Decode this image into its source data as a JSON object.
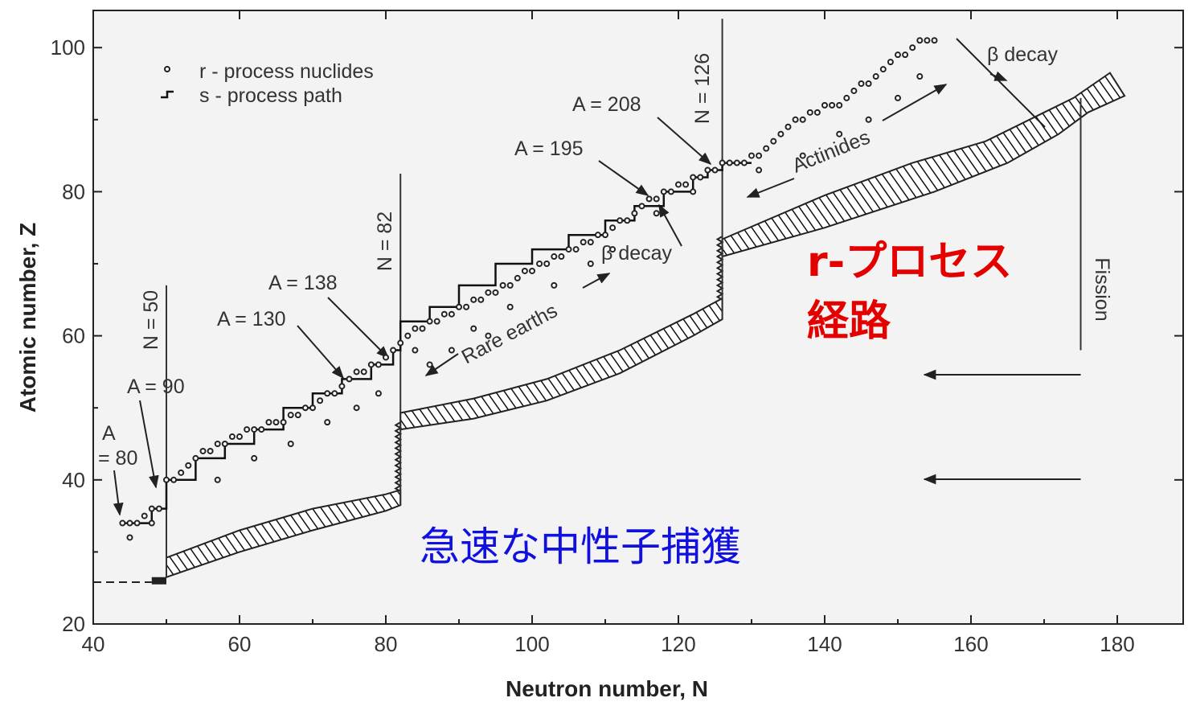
{
  "chart_data": {
    "type": "scatter",
    "xlabel": "Neutron number, N",
    "ylabel": "Atomic number, Z",
    "xlim": [
      40,
      190
    ],
    "ylim": [
      20,
      105
    ],
    "x_ticks": [
      40,
      60,
      80,
      100,
      120,
      140,
      160,
      180
    ],
    "y_ticks": [
      20,
      40,
      60,
      80,
      100
    ],
    "grid": false,
    "legend": {
      "position": "top-left",
      "entries": [
        {
          "name": "r - process nuclides",
          "marker": "open-circle"
        },
        {
          "name": "s - process path",
          "marker": "step-line"
        }
      ]
    },
    "series": [
      {
        "name": "r - process nuclides",
        "points": [
          [
            44,
            34
          ],
          [
            45,
            34
          ],
          [
            46,
            34
          ],
          [
            47,
            35
          ],
          [
            48,
            36
          ],
          [
            49,
            36
          ],
          [
            50,
            40
          ],
          [
            51,
            40
          ],
          [
            52,
            41
          ],
          [
            53,
            42
          ],
          [
            54,
            43
          ],
          [
            55,
            44
          ],
          [
            56,
            44
          ],
          [
            57,
            45
          ],
          [
            58,
            45
          ],
          [
            59,
            46
          ],
          [
            60,
            46
          ],
          [
            61,
            47
          ],
          [
            62,
            47
          ],
          [
            63,
            47
          ],
          [
            64,
            48
          ],
          [
            65,
            48
          ],
          [
            66,
            48
          ],
          [
            67,
            49
          ],
          [
            68,
            49
          ],
          [
            69,
            50
          ],
          [
            70,
            50
          ],
          [
            71,
            51
          ],
          [
            72,
            52
          ],
          [
            73,
            52
          ],
          [
            74,
            53
          ],
          [
            75,
            54
          ],
          [
            76,
            55
          ],
          [
            77,
            55
          ],
          [
            78,
            56
          ],
          [
            79,
            56
          ],
          [
            80,
            57
          ],
          [
            81,
            58
          ],
          [
            82,
            59
          ],
          [
            83,
            60
          ],
          [
            84,
            61
          ],
          [
            85,
            61
          ],
          [
            86,
            62
          ],
          [
            87,
            62
          ],
          [
            88,
            63
          ],
          [
            89,
            63
          ],
          [
            90,
            64
          ],
          [
            91,
            64
          ],
          [
            92,
            65
          ],
          [
            93,
            65
          ],
          [
            94,
            66
          ],
          [
            95,
            66
          ],
          [
            96,
            67
          ],
          [
            97,
            67
          ],
          [
            98,
            68
          ],
          [
            99,
            69
          ],
          [
            100,
            69
          ],
          [
            101,
            70
          ],
          [
            102,
            70
          ],
          [
            103,
            71
          ],
          [
            104,
            71
          ],
          [
            105,
            72
          ],
          [
            106,
            72
          ],
          [
            107,
            73
          ],
          [
            108,
            73
          ],
          [
            109,
            74
          ],
          [
            110,
            74
          ],
          [
            111,
            75
          ],
          [
            112,
            76
          ],
          [
            113,
            76
          ],
          [
            114,
            77
          ],
          [
            115,
            78
          ],
          [
            116,
            79
          ],
          [
            117,
            79
          ],
          [
            118,
            80
          ],
          [
            119,
            80
          ],
          [
            120,
            81
          ],
          [
            121,
            81
          ],
          [
            122,
            82
          ],
          [
            123,
            82
          ],
          [
            124,
            83
          ],
          [
            125,
            83
          ],
          [
            126,
            84
          ],
          [
            127,
            84
          ],
          [
            128,
            84
          ],
          [
            129,
            84
          ],
          [
            130,
            85
          ],
          [
            131,
            85
          ],
          [
            132,
            86
          ],
          [
            133,
            87
          ],
          [
            134,
            88
          ],
          [
            135,
            89
          ],
          [
            136,
            90
          ],
          [
            137,
            90
          ],
          [
            138,
            91
          ],
          [
            139,
            91
          ],
          [
            140,
            92
          ],
          [
            141,
            92
          ],
          [
            142,
            92
          ],
          [
            143,
            93
          ],
          [
            144,
            94
          ],
          [
            145,
            95
          ],
          [
            146,
            95
          ],
          [
            147,
            96
          ],
          [
            148,
            97
          ],
          [
            149,
            98
          ],
          [
            150,
            99
          ],
          [
            151,
            99
          ],
          [
            152,
            100
          ],
          [
            153,
            101
          ],
          [
            154,
            101
          ],
          [
            155,
            101
          ],
          [
            45,
            32
          ],
          [
            48,
            34
          ],
          [
            57,
            40
          ],
          [
            62,
            43
          ],
          [
            67,
            45
          ],
          [
            72,
            48
          ],
          [
            76,
            50
          ],
          [
            79,
            52
          ],
          [
            84,
            58
          ],
          [
            86,
            56
          ],
          [
            89,
            58
          ],
          [
            92,
            61
          ],
          [
            94,
            60
          ],
          [
            97,
            64
          ],
          [
            103,
            67
          ],
          [
            108,
            70
          ],
          [
            111,
            72
          ],
          [
            117,
            77
          ],
          [
            122,
            80
          ],
          [
            131,
            83
          ],
          [
            137,
            85
          ],
          [
            142,
            88
          ],
          [
            146,
            90
          ],
          [
            150,
            93
          ],
          [
            153,
            96
          ]
        ]
      },
      {
        "name": "s - process path",
        "points": [
          [
            44,
            34
          ],
          [
            48,
            34
          ],
          [
            48,
            36
          ],
          [
            50,
            36
          ],
          [
            50,
            40
          ],
          [
            54,
            40
          ],
          [
            54,
            43
          ],
          [
            58,
            43
          ],
          [
            58,
            45
          ],
          [
            62,
            45
          ],
          [
            62,
            47
          ],
          [
            66,
            47
          ],
          [
            66,
            50
          ],
          [
            70,
            50
          ],
          [
            70,
            52
          ],
          [
            74,
            52
          ],
          [
            74,
            54
          ],
          [
            78,
            54
          ],
          [
            78,
            56
          ],
          [
            81,
            56
          ],
          [
            81,
            58
          ],
          [
            82,
            58
          ],
          [
            82,
            62
          ],
          [
            86,
            62
          ],
          [
            86,
            64
          ],
          [
            90,
            64
          ],
          [
            90,
            67
          ],
          [
            95,
            67
          ],
          [
            95,
            70
          ],
          [
            100,
            70
          ],
          [
            100,
            72
          ],
          [
            105,
            72
          ],
          [
            105,
            74
          ],
          [
            110,
            74
          ],
          [
            110,
            76
          ],
          [
            114,
            76
          ],
          [
            114,
            78
          ],
          [
            118,
            78
          ],
          [
            118,
            80
          ],
          [
            122,
            80
          ],
          [
            122,
            82
          ],
          [
            124,
            82
          ],
          [
            124,
            83
          ],
          [
            126,
            83
          ],
          [
            126,
            84
          ],
          [
            130,
            84
          ]
        ]
      }
    ],
    "annotations": [
      {
        "text": "A",
        "at": [
          44,
          42.5
        ]
      },
      {
        "text": "= 80",
        "at": [
          44,
          39.5
        ]
      },
      {
        "text": "A = 90",
        "at": [
          48,
          48.5
        ]
      },
      {
        "text": "A = 130",
        "at": [
          70,
          61.5
        ]
      },
      {
        "text": "A = 138",
        "at": [
          76,
          65.5
        ]
      },
      {
        "text": "A = 195",
        "at": [
          105,
          82.5
        ]
      },
      {
        "text": "A = 208",
        "at": [
          112,
          96
        ]
      },
      {
        "text": "N = 50",
        "at": [
          50,
          60
        ]
      },
      {
        "text": "N = 82",
        "at": [
          81,
          70
        ]
      },
      {
        "text": "N = 126",
        "at": [
          123,
          97
        ]
      },
      {
        "text": "β  decay",
        "at": [
          118,
          71
        ]
      },
      {
        "text": "β  decay",
        "at": [
          165,
          100.5
        ]
      },
      {
        "text": "Rare earths",
        "at": [
          97,
          58
        ]
      },
      {
        "text": "Actinides",
        "at": [
          152,
          83
        ]
      },
      {
        "text": "Fission",
        "at": [
          176,
          64
        ]
      }
    ]
  },
  "overlay_text": {
    "r_process_line1": "r-プロセス",
    "r_process_line2": "経路",
    "rapid_capture": "急速な中性子捕獲"
  },
  "colors": {
    "panel": "#f3f3f3",
    "r_process_text": "#e50000",
    "rapid_capture_text": "#1010e0"
  }
}
